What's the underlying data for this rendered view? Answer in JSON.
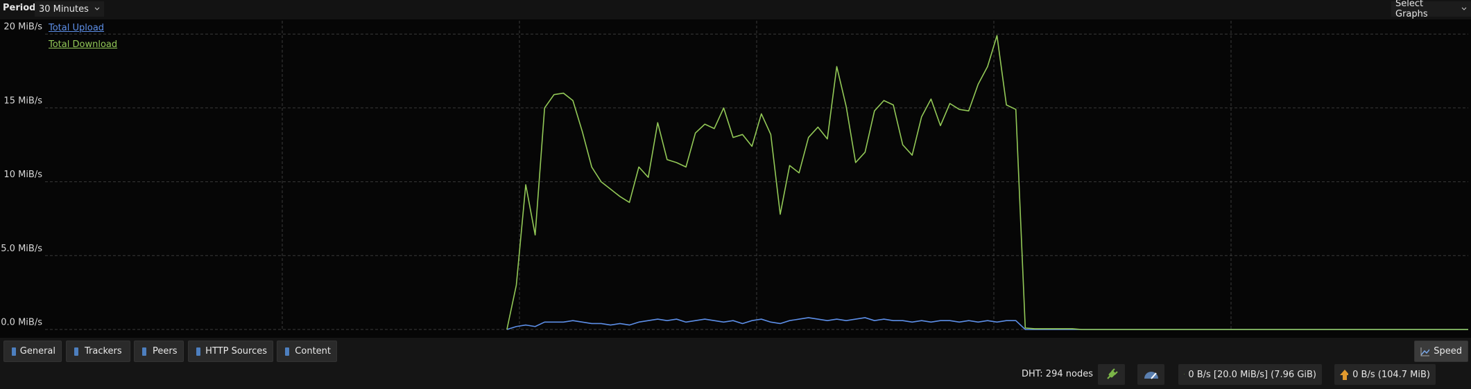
{
  "toolbar": {
    "period_label": "Period:",
    "period_value": "30 Minutes",
    "select_graphs": "Select Graphs"
  },
  "chart_data": {
    "type": "line",
    "series": [
      {
        "name": "Total Upload",
        "color": "#5d8fe8",
        "values": [
          null,
          null,
          null,
          null,
          null,
          null,
          null,
          null,
          null,
          null,
          null,
          null,
          null,
          null,
          null,
          null,
          null,
          null,
          null,
          null,
          null,
          null,
          null,
          null,
          null,
          null,
          null,
          null,
          null,
          null,
          null,
          null,
          null,
          null,
          null,
          null,
          null,
          null,
          null,
          null,
          null,
          null,
          null,
          null,
          null,
          null,
          null,
          null,
          null,
          0,
          0.2,
          0.3,
          0.2,
          0.5,
          0.5,
          0.5,
          0.6,
          0.5,
          0.4,
          0.4,
          0.3,
          0.4,
          0.3,
          0.5,
          0.6,
          0.7,
          0.6,
          0.7,
          0.5,
          0.6,
          0.7,
          0.6,
          0.5,
          0.6,
          0.4,
          0.6,
          0.7,
          0.5,
          0.4,
          0.6,
          0.7,
          0.8,
          0.7,
          0.6,
          0.7,
          0.6,
          0.7,
          0.8,
          0.6,
          0.7,
          0.6,
          0.6,
          0.5,
          0.6,
          0.5,
          0.6,
          0.6,
          0.5,
          0.6,
          0.5,
          0.6,
          0.5,
          0.6,
          0.6,
          0,
          0,
          0,
          0,
          0,
          0,
          0,
          0,
          0,
          0,
          0,
          0,
          0,
          0,
          0,
          0,
          0,
          0,
          0,
          0,
          0,
          0,
          0,
          0,
          0,
          0,
          0,
          0,
          0,
          0,
          0,
          0,
          0,
          0,
          0,
          0,
          0,
          0,
          0,
          0,
          0,
          0,
          0,
          0,
          0,
          0,
          0,
          0
        ]
      },
      {
        "name": "Total Download",
        "color": "#93c957",
        "values": [
          null,
          null,
          null,
          null,
          null,
          null,
          null,
          null,
          null,
          null,
          null,
          null,
          null,
          null,
          null,
          null,
          null,
          null,
          null,
          null,
          null,
          null,
          null,
          null,
          null,
          null,
          null,
          null,
          null,
          null,
          null,
          null,
          null,
          null,
          null,
          null,
          null,
          null,
          null,
          null,
          null,
          null,
          null,
          null,
          null,
          null,
          null,
          null,
          null,
          0,
          3,
          9.8,
          6.4,
          15,
          15.9,
          16,
          15.5,
          13.4,
          11,
          10,
          9.5,
          9,
          8.6,
          11,
          10.3,
          14,
          11.5,
          11.3,
          11,
          13.3,
          13.9,
          13.6,
          15,
          13,
          13.2,
          12.4,
          14.6,
          13.2,
          7.8,
          11.1,
          10.6,
          13,
          13.7,
          12.9,
          17.8,
          15.1,
          11.3,
          12,
          14.8,
          15.5,
          15.2,
          12.5,
          11.8,
          14.4,
          15.6,
          13.8,
          15.3,
          14.9,
          14.8,
          16.6,
          17.8,
          19.9,
          15.2,
          14.9,
          0.1,
          0.05,
          0.05,
          0.05,
          0.05,
          0.05,
          0,
          0,
          0,
          0,
          0,
          0,
          0,
          0,
          0,
          0,
          0,
          0,
          0,
          0,
          0,
          0,
          0,
          0,
          0,
          0,
          0,
          0,
          0,
          0,
          0,
          0,
          0,
          0,
          0,
          0,
          0,
          0,
          0,
          0,
          0,
          0,
          0,
          0,
          0,
          0,
          0,
          0
        ]
      }
    ],
    "ylim": [
      0,
      20.9
    ],
    "yticks": [
      {
        "value": 0,
        "label": "0.0 MiB/s"
      },
      {
        "value": 5,
        "label": "5.0 MiB/s"
      },
      {
        "value": 10,
        "label": "10 MiB/s"
      },
      {
        "value": 15,
        "label": "15 MiB/s"
      },
      {
        "value": 20,
        "label": "20 MiB/s"
      }
    ],
    "grid": true
  },
  "tabs": [
    "General",
    "Trackers",
    "Peers",
    "HTTP Sources",
    "Content"
  ],
  "speed_button": "Speed",
  "status_bar": {
    "dht": "DHT: 294 nodes",
    "download": "0 B/s [20.0 MiB/s] (7.96 GiB)",
    "upload": "0 B/s (104.7 MiB)"
  }
}
